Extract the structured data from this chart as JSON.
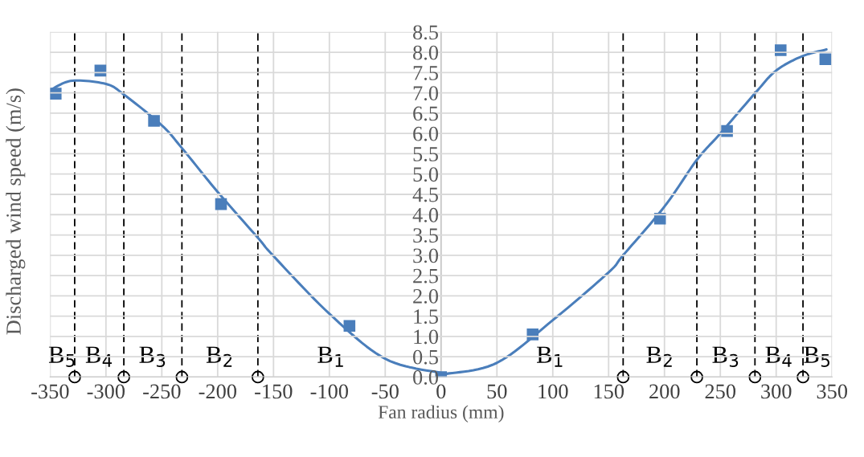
{
  "chart_data": {
    "type": "scatter",
    "xlabel": "Fan radius (mm)",
    "ylabel": "Discharged wind speed (m/s)",
    "xlim": [
      -350,
      350
    ],
    "ylim": [
      0,
      8.5
    ],
    "xticks": [
      -350,
      -300,
      -250,
      -200,
      -150,
      -100,
      -50,
      0,
      50,
      100,
      150,
      200,
      250,
      300,
      350
    ],
    "yticks": [
      {
        "value": 0,
        "label": "0.0"
      },
      0.5,
      {
        "value": 1,
        "label": "1.0"
      },
      1.5,
      {
        "value": 2,
        "label": "2.0"
      },
      2.5,
      {
        "value": 3,
        "label": "3.0"
      },
      3.5,
      {
        "value": 4,
        "label": "4.0"
      },
      4.5,
      {
        "value": 5,
        "label": "5.0"
      },
      5.5,
      {
        "value": 6,
        "label": "6.0"
      },
      6.5,
      {
        "value": 7,
        "label": "7.0"
      },
      7.5,
      {
        "value": 8,
        "label": "8.0"
      },
      8.5
    ],
    "grid": true,
    "series": [
      {
        "color": "#4a7ebb",
        "marker": "square",
        "x": [
          -345,
          -305,
          -257,
          -197,
          -82,
          0,
          82,
          196,
          256,
          304,
          344
        ],
        "values": [
          6.98,
          7.55,
          6.31,
          4.26,
          1.26,
          0,
          1.05,
          3.9,
          6.06,
          8.05,
          7.83
        ]
      },
      {
        "type": "line",
        "color": "#4a7ebb",
        "marker": "none",
        "x": [
          -348,
          -330,
          -300,
          -284,
          -250,
          -232,
          -200,
          -164,
          -150,
          -100,
          -50,
          0,
          5,
          50,
          100,
          150,
          163,
          200,
          229,
          250,
          282,
          300,
          323,
          345
        ],
        "values": [
          7.1,
          7.3,
          7.22,
          6.96,
          6.2,
          5.64,
          4.56,
          3.43,
          2.98,
          1.56,
          0.45,
          0.1,
          0.08,
          0.35,
          1.4,
          2.58,
          3.0,
          4.2,
          5.35,
          6.0,
          7.02,
          7.55,
          7.9,
          8.07
        ]
      }
    ],
    "ref_lines": [
      {
        "axis": "x",
        "value": -328,
        "color": "#000000",
        "line_style": "dashed"
      },
      {
        "axis": "x",
        "value": -284,
        "color": "#000000",
        "line_style": "dashed"
      },
      {
        "axis": "x",
        "value": -232,
        "color": "#000000",
        "line_style": "dashed"
      },
      {
        "axis": "x",
        "value": -164,
        "color": "#000000",
        "line_style": "dashed"
      },
      {
        "axis": "x",
        "value": 163,
        "color": "#000000",
        "line_style": "dashed"
      },
      {
        "axis": "x",
        "value": 229,
        "color": "#000000",
        "line_style": "dashed"
      },
      {
        "axis": "x",
        "value": 281,
        "color": "#000000",
        "line_style": "dashed"
      },
      {
        "axis": "x",
        "value": 324,
        "color": "#000000",
        "line_style": "dashed"
      }
    ],
    "annotations": [
      "B$_{5}$",
      "B$_{4}$",
      "B$_{3}$",
      "B$_{2}$",
      "B$_{1}$",
      "B$_{1}$",
      "B$_{2}$",
      "B$_{3}$",
      "B$_{4}$",
      "B$_{5}$"
    ]
  }
}
